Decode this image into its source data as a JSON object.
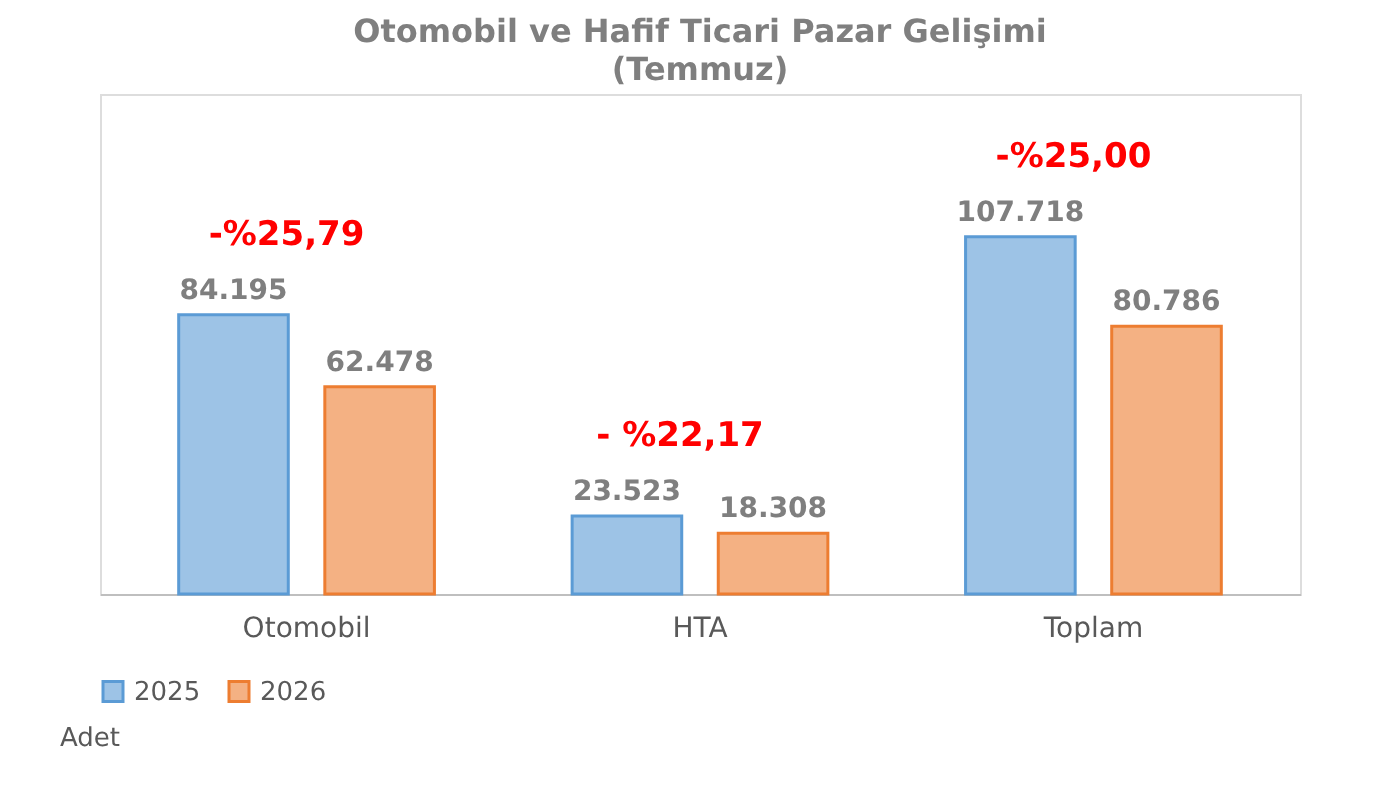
{
  "chart_data": {
    "type": "bar",
    "title": "Otomobil ve Hafif Ticari Pazar Gelişimi",
    "subtitle": "(Temmuz)",
    "categories": [
      "Otomobil",
      "HTA",
      "Toplam"
    ],
    "series": [
      {
        "name": "2025",
        "color": "#9dc3e6",
        "values": [
          84195,
          23523,
          107718
        ],
        "value_labels": [
          "84.195",
          "23.523",
          "107.718"
        ]
      },
      {
        "name": "2026",
        "color": "#f4b183",
        "values": [
          62478,
          18308,
          80786
        ],
        "value_labels": [
          "62.478",
          "18.308",
          "80.786"
        ]
      }
    ],
    "legend": "bottom",
    "grid": false,
    "annotations": [
      "-%25,79",
      "- %22,17",
      "-%25,00",
      "Adet"
    ]
  }
}
